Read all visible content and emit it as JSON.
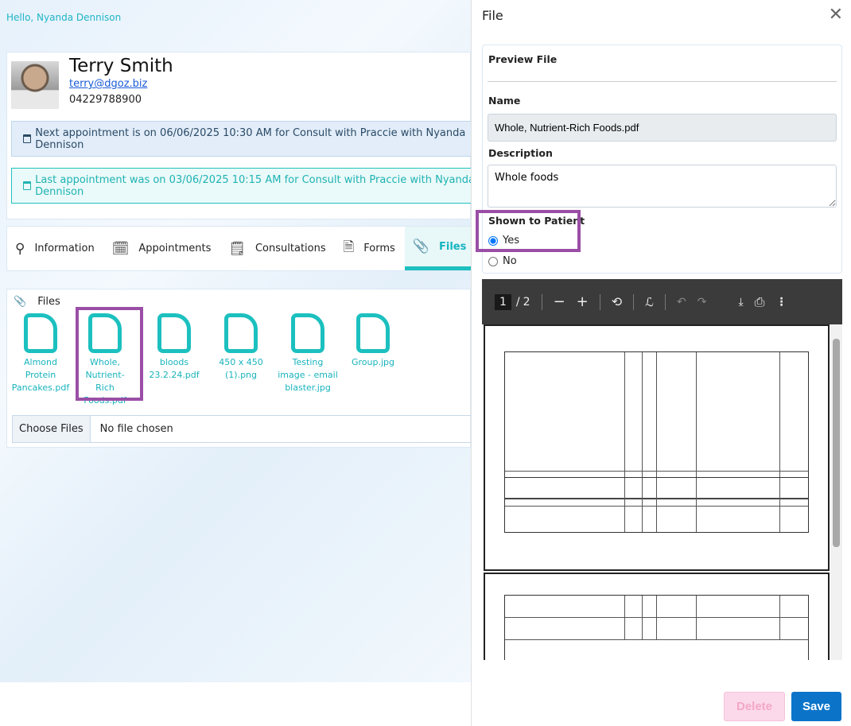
{
  "greeting": "Hello, Nyanda Dennison",
  "patient": {
    "name": "Terry Smith",
    "email": "terry@dgoz.biz",
    "phone": "04229788900"
  },
  "appointments": {
    "next": "Next appointment is on 06/06/2025 10:30 AM for Consult with Praccie with Nyanda Dennison",
    "last": "Last appointment was on 03/06/2025 10:15 AM for Consult with Praccie with Nyanda Dennison"
  },
  "tabs": [
    {
      "label": "Information",
      "icon": "search-icon"
    },
    {
      "label": "Appointments",
      "icon": "calendar-icon"
    },
    {
      "label": "Consultations",
      "icon": "notepad-icon"
    },
    {
      "label": "Forms",
      "icon": "form-icon"
    },
    {
      "label": "Files",
      "icon": "paperclip-icon",
      "active": true
    }
  ],
  "files": {
    "title": "Files",
    "items": [
      "Almond Protein Pancakes.pdf",
      "Whole, Nutrient-Rich Foods.pdf",
      "bloods 23.2.24.pdf",
      "450 x 450 (1).png",
      "Testing image - email blaster.jpg",
      "Group.jpg"
    ],
    "selected_index": 1,
    "choose_label": "Choose Files",
    "no_file": "No file chosen"
  },
  "panel": {
    "title": "File",
    "preview_label": "Preview File",
    "name_label": "Name",
    "name_value": "Whole, Nutrient-Rich Foods.pdf",
    "description_label": "Description",
    "description_value": "Whole foods",
    "shown_label": "Shown to Patient",
    "yes": "Yes",
    "no": "No",
    "shown_value": "Yes",
    "viewer": {
      "page": "1",
      "total": "2"
    },
    "delete": "Delete",
    "save": "Save"
  },
  "colors": {
    "accent": "#1cc0bf",
    "highlight": "#9a4ea6",
    "save": "#0b74c9"
  }
}
